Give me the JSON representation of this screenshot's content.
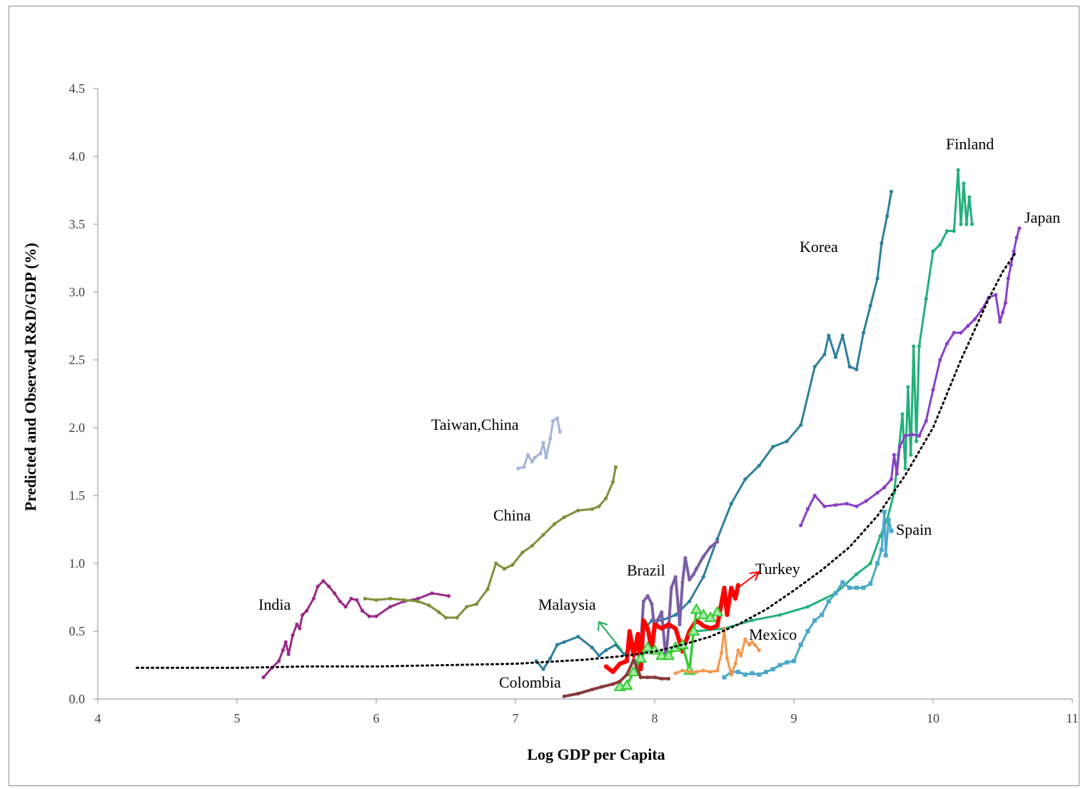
{
  "chart_data": {
    "type": "line",
    "title": "",
    "xlabel": "Log GDP per Capita",
    "ylabel": "Predicted and Observed R&D/GDP (%)",
    "xlim": [
      4,
      11
    ],
    "ylim": [
      0,
      4.5
    ],
    "xticks": [
      "4",
      "5",
      "6",
      "7",
      "8",
      "9",
      "10",
      "11"
    ],
    "yticks": [
      "0.0",
      "0.5",
      "1.0",
      "1.5",
      "2.0",
      "2.5",
      "3.0",
      "3.5",
      "4.0",
      "4.5"
    ],
    "grid": false,
    "series": [
      {
        "name": "India",
        "color": "#9b2a8a",
        "x": [
          5.19,
          5.25,
          5.3,
          5.33,
          5.35,
          5.37,
          5.4,
          5.43,
          5.45,
          5.47,
          5.5,
          5.55,
          5.58,
          5.62,
          5.66,
          5.7,
          5.74,
          5.78,
          5.82,
          5.86,
          5.9,
          5.95,
          6.0,
          6.1,
          6.2,
          6.3,
          6.4,
          6.52
        ],
        "y": [
          0.16,
          0.23,
          0.28,
          0.36,
          0.42,
          0.33,
          0.47,
          0.55,
          0.52,
          0.62,
          0.65,
          0.74,
          0.83,
          0.87,
          0.83,
          0.78,
          0.72,
          0.68,
          0.74,
          0.73,
          0.65,
          0.61,
          0.61,
          0.68,
          0.72,
          0.74,
          0.78,
          0.76
        ]
      },
      {
        "name": "China",
        "color": "#7f8f3a",
        "x": [
          5.92,
          6.0,
          6.1,
          6.2,
          6.3,
          6.38,
          6.45,
          6.5,
          6.58,
          6.65,
          6.72,
          6.8,
          6.86,
          6.92,
          6.98,
          7.05,
          7.12,
          7.2,
          7.28,
          7.35,
          7.45,
          7.55,
          7.6,
          7.65,
          7.7,
          7.72
        ],
        "y": [
          0.74,
          0.73,
          0.74,
          0.73,
          0.72,
          0.69,
          0.64,
          0.6,
          0.6,
          0.68,
          0.7,
          0.81,
          1.0,
          0.96,
          0.99,
          1.08,
          1.13,
          1.21,
          1.29,
          1.34,
          1.39,
          1.4,
          1.42,
          1.48,
          1.6,
          1.71
        ]
      },
      {
        "name": "Taiwan,China",
        "color": "#a3b5d6",
        "x": [
          7.02,
          7.06,
          7.09,
          7.12,
          7.14,
          7.18,
          7.2,
          7.22,
          7.25,
          7.27,
          7.3,
          7.32
        ],
        "y": [
          1.7,
          1.71,
          1.8,
          1.75,
          1.78,
          1.81,
          1.89,
          1.78,
          1.92,
          2.05,
          2.07,
          1.97
        ]
      },
      {
        "name": "Korea",
        "color": "#2e7f9e",
        "x": [
          7.15,
          7.2,
          7.25,
          7.3,
          7.35,
          7.45,
          7.55,
          7.6,
          7.65,
          7.72,
          7.78,
          7.83,
          7.88,
          7.93,
          7.98,
          8.05,
          8.15,
          8.25,
          8.35,
          8.45,
          8.55,
          8.65,
          8.75,
          8.85,
          8.95,
          9.05,
          9.15,
          9.22,
          9.25,
          9.3,
          9.35,
          9.4,
          9.45,
          9.5,
          9.55,
          9.6,
          9.63,
          9.67,
          9.7
        ],
        "y": [
          0.28,
          0.22,
          0.3,
          0.4,
          0.42,
          0.46,
          0.38,
          0.32,
          0.36,
          0.4,
          0.33,
          0.38,
          0.44,
          0.52,
          0.58,
          0.58,
          0.62,
          0.72,
          0.9,
          1.18,
          1.44,
          1.62,
          1.72,
          1.86,
          1.9,
          2.02,
          2.45,
          2.54,
          2.68,
          2.52,
          2.68,
          2.45,
          2.43,
          2.7,
          2.9,
          3.1,
          3.36,
          3.56,
          3.74
        ]
      },
      {
        "name": "Finland",
        "color": "#22b07a",
        "x": [
          8.3,
          8.5,
          8.7,
          8.9,
          9.1,
          9.3,
          9.45,
          9.55,
          9.62,
          9.67,
          9.72,
          9.75,
          9.78,
          9.8,
          9.82,
          9.84,
          9.86,
          9.88,
          9.9,
          9.95,
          10.0,
          10.05,
          10.1,
          10.15,
          10.18,
          10.2,
          10.22,
          10.24,
          10.26,
          10.28
        ],
        "y": [
          0.5,
          0.52,
          0.58,
          0.62,
          0.68,
          0.78,
          0.92,
          1.0,
          1.2,
          1.32,
          1.52,
          1.8,
          2.1,
          1.7,
          2.3,
          1.8,
          2.6,
          1.9,
          2.6,
          2.95,
          3.3,
          3.35,
          3.45,
          3.45,
          3.9,
          3.5,
          3.8,
          3.5,
          3.7,
          3.5
        ]
      },
      {
        "name": "Japan",
        "color": "#8a3fc7",
        "x": [
          9.05,
          9.1,
          9.15,
          9.22,
          9.3,
          9.38,
          9.45,
          9.52,
          9.6,
          9.65,
          9.7,
          9.72,
          9.74,
          9.76,
          9.8,
          9.85,
          9.9,
          9.95,
          10.0,
          10.05,
          10.1,
          10.15,
          10.2,
          10.25,
          10.3,
          10.35,
          10.4,
          10.45,
          10.48,
          10.5,
          10.52,
          10.54,
          10.56,
          10.58,
          10.6,
          10.62
        ],
        "y": [
          1.28,
          1.4,
          1.5,
          1.42,
          1.43,
          1.44,
          1.42,
          1.46,
          1.52,
          1.56,
          1.62,
          1.8,
          1.66,
          1.86,
          1.94,
          1.95,
          1.94,
          2.05,
          2.28,
          2.5,
          2.62,
          2.7,
          2.7,
          2.75,
          2.8,
          2.87,
          2.96,
          2.98,
          2.78,
          2.85,
          2.92,
          3.1,
          3.2,
          3.3,
          3.4,
          3.47
        ]
      },
      {
        "name": "Spain",
        "color": "#4aa8c8",
        "x": [
          8.5,
          8.55,
          8.6,
          8.65,
          8.7,
          8.75,
          8.8,
          8.85,
          8.9,
          8.95,
          9.0,
          9.05,
          9.1,
          9.15,
          9.2,
          9.25,
          9.3,
          9.35,
          9.4,
          9.45,
          9.5,
          9.55,
          9.6,
          9.63,
          9.65,
          9.66,
          9.68,
          9.7
        ],
        "y": [
          0.16,
          0.2,
          0.2,
          0.18,
          0.19,
          0.18,
          0.2,
          0.22,
          0.25,
          0.27,
          0.28,
          0.4,
          0.5,
          0.58,
          0.62,
          0.72,
          0.78,
          0.86,
          0.82,
          0.82,
          0.82,
          0.85,
          1.0,
          1.1,
          1.38,
          1.06,
          1.32,
          1.24
        ]
      },
      {
        "name": "Brazil",
        "color": "#7b5ea7",
        "x": [
          7.9,
          7.92,
          7.95,
          7.98,
          8.0,
          8.02,
          8.05,
          8.08,
          8.1,
          8.12,
          8.15,
          8.18,
          8.2,
          8.22,
          8.25,
          8.28,
          8.3,
          8.35,
          8.4,
          8.45
        ],
        "y": [
          0.4,
          0.72,
          0.76,
          0.7,
          0.5,
          0.58,
          0.64,
          0.3,
          0.52,
          0.82,
          0.9,
          0.55,
          0.86,
          1.04,
          0.88,
          0.92,
          0.96,
          1.05,
          1.12,
          1.16
        ]
      },
      {
        "name": "Turkey",
        "color": "#ff0000",
        "x": [
          7.65,
          7.7,
          7.75,
          7.8,
          7.82,
          7.85,
          7.88,
          7.9,
          7.92,
          7.95,
          7.98,
          8.0,
          8.05,
          8.1,
          8.15,
          8.2,
          8.25,
          8.3,
          8.35,
          8.4,
          8.45,
          8.5,
          8.52,
          8.55,
          8.58,
          8.6
        ],
        "y": [
          0.24,
          0.2,
          0.26,
          0.28,
          0.5,
          0.32,
          0.48,
          0.22,
          0.58,
          0.52,
          0.36,
          0.55,
          0.52,
          0.55,
          0.52,
          0.35,
          0.5,
          0.58,
          0.54,
          0.52,
          0.54,
          0.82,
          0.62,
          0.82,
          0.74,
          0.84
        ]
      },
      {
        "name": "Malaysia",
        "color": "#33cc33",
        "x": [
          7.75,
          7.8,
          7.85,
          7.9,
          7.95,
          8.0,
          8.05,
          8.1,
          8.15,
          8.2,
          8.25,
          8.28,
          8.3,
          8.35,
          8.4,
          8.45
        ],
        "y": [
          0.09,
          0.1,
          0.2,
          0.3,
          0.38,
          0.36,
          0.32,
          0.32,
          0.38,
          0.4,
          0.21,
          0.5,
          0.66,
          0.62,
          0.6,
          0.64
        ]
      },
      {
        "name": "Mexico",
        "color": "#f4974a",
        "x": [
          8.15,
          8.2,
          8.25,
          8.3,
          8.35,
          8.4,
          8.45,
          8.48,
          8.5,
          8.52,
          8.55,
          8.58,
          8.6,
          8.62,
          8.65,
          8.68,
          8.7,
          8.72,
          8.75
        ],
        "y": [
          0.19,
          0.21,
          0.2,
          0.2,
          0.21,
          0.2,
          0.21,
          0.34,
          0.52,
          0.3,
          0.18,
          0.26,
          0.36,
          0.32,
          0.44,
          0.4,
          0.42,
          0.4,
          0.36
        ]
      },
      {
        "name": "Colombia",
        "color": "#8b3a3a",
        "x": [
          7.35,
          7.45,
          7.55,
          7.62,
          7.7,
          7.75,
          7.8,
          7.85,
          7.9,
          7.95,
          8.0,
          8.05,
          8.1
        ],
        "y": [
          0.02,
          0.04,
          0.07,
          0.09,
          0.11,
          0.13,
          0.18,
          0.29,
          0.16,
          0.16,
          0.16,
          0.15,
          0.15
        ]
      },
      {
        "name": "Predicted",
        "color": "#000000",
        "dotted": true,
        "x": [
          4.28,
          5.0,
          5.5,
          6.0,
          6.5,
          7.0,
          7.5,
          7.8,
          8.0,
          8.2,
          8.4,
          8.6,
          8.8,
          9.0,
          9.2,
          9.4,
          9.6,
          9.8,
          10.0,
          10.2,
          10.4,
          10.5,
          10.6
        ],
        "y": [
          0.23,
          0.23,
          0.24,
          0.24,
          0.25,
          0.26,
          0.29,
          0.32,
          0.35,
          0.4,
          0.46,
          0.55,
          0.66,
          0.8,
          0.95,
          1.12,
          1.35,
          1.65,
          2.0,
          2.5,
          2.95,
          3.15,
          3.3
        ]
      }
    ],
    "annotations": [
      {
        "id": "india",
        "text": "India"
      },
      {
        "id": "china",
        "text": "China"
      },
      {
        "id": "taiwan",
        "text": "Taiwan,China"
      },
      {
        "id": "korea",
        "text": "Korea"
      },
      {
        "id": "finland",
        "text": "Finland"
      },
      {
        "id": "japan",
        "text": "Japan"
      },
      {
        "id": "spain",
        "text": "Spain"
      },
      {
        "id": "brazil",
        "text": "Brazil"
      },
      {
        "id": "turkey",
        "text": "Turkey"
      },
      {
        "id": "malaysia",
        "text": "Malaysia"
      },
      {
        "id": "mexico",
        "text": "Mexico"
      },
      {
        "id": "colombia",
        "text": "Colombia"
      }
    ]
  }
}
